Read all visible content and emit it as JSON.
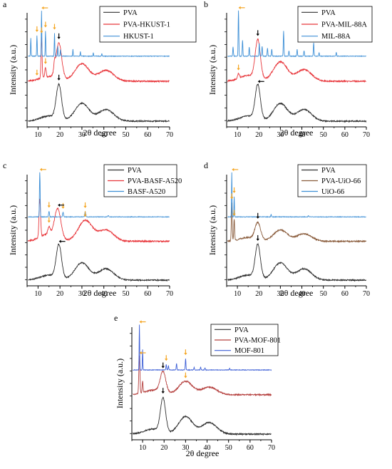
{
  "figure": {
    "background": "#ffffff",
    "arrow_color": "#f5a623",
    "shift_arrow_color": "#000000"
  },
  "chart_data": [
    {
      "panel": "a",
      "type": "line",
      "xlabel": "2θ degree",
      "ylabel": "Intensity (a.u.)",
      "xlim": [
        5,
        70
      ],
      "xticks": [
        10,
        20,
        30,
        40,
        50,
        60,
        70
      ],
      "legend": {
        "placement": "top-right"
      },
      "series": [
        {
          "name": "PVA",
          "color": "#2f2f2f",
          "kind": "amorphous",
          "peaks": [
            [
              19.5,
              1.0,
              1.2
            ],
            [
              30,
              0.52,
              3.2
            ],
            [
              41,
              0.34,
              3.5
            ]
          ],
          "shoulder": 0.15
        },
        {
          "name": "PVA-HKUST-1",
          "color": "#e8373c",
          "kind": "amorphous",
          "peaks": [
            [
              11.6,
              1.05,
              0.25
            ],
            [
              19.5,
              0.92,
              1.3
            ],
            [
              30,
              0.45,
              3.2
            ],
            [
              41,
              0.28,
              3.5
            ],
            [
              13.4,
              0.25,
              0.3
            ],
            [
              17.5,
              0.2,
              0.3
            ]
          ],
          "shoulder": 0.12
        },
        {
          "name": "HKUST-1",
          "color": "#3d8fd6",
          "kind": "crystalline",
          "peaks": [
            [
              6.7,
              0.4,
              0.12
            ],
            [
              9.5,
              0.45,
              0.12
            ],
            [
              11.6,
              1.0,
              0.12
            ],
            [
              13.4,
              0.55,
              0.12
            ],
            [
              17.5,
              0.5,
              0.12
            ],
            [
              19.0,
              0.22,
              0.12
            ],
            [
              20.2,
              0.15,
              0.12
            ],
            [
              25.9,
              0.15,
              0.12
            ],
            [
              29.3,
              0.1,
              0.12
            ],
            [
              35.2,
              0.08,
              0.12
            ],
            [
              39.1,
              0.06,
              0.12
            ]
          ]
        }
      ],
      "arrows": [
        {
          "series": 2,
          "x": 11.6,
          "color": "orange",
          "dir": "left"
        },
        {
          "series": 2,
          "x": 9.5,
          "color": "orange",
          "dir": "down"
        },
        {
          "series": 2,
          "x": 13.4,
          "color": "orange",
          "dir": "down"
        },
        {
          "series": 2,
          "x": 17.5,
          "color": "orange",
          "dir": "down"
        },
        {
          "series": 1,
          "x": 11.6,
          "color": "orange",
          "dir": "down"
        },
        {
          "series": 1,
          "x": 9.5,
          "color": "orange",
          "dir": "down"
        },
        {
          "series": 1,
          "x": 13.4,
          "color": "orange",
          "dir": "down"
        },
        {
          "series": 1,
          "x": 19.5,
          "color": "black",
          "dir": "down"
        },
        {
          "series": 0,
          "x": 19.5,
          "color": "black",
          "dir": "down"
        }
      ]
    },
    {
      "panel": "b",
      "type": "line",
      "xlabel": "2θ degree",
      "ylabel": "Intensity (a.u.)",
      "xlim": [
        5,
        70
      ],
      "xticks": [
        10,
        20,
        30,
        40,
        50,
        60,
        70
      ],
      "legend": {
        "placement": "top-right"
      },
      "series": [
        {
          "name": "PVA",
          "color": "#2f2f2f",
          "kind": "amorphous",
          "peaks": [
            [
              19.5,
              1.0,
              1.2
            ],
            [
              30,
              0.52,
              3.2
            ],
            [
              41,
              0.34,
              3.5
            ]
          ],
          "shoulder": 0.15
        },
        {
          "name": "PVA-MIL-88A",
          "color": "#e8373c",
          "kind": "amorphous",
          "peaks": [
            [
              19.5,
              1.0,
              1.2
            ],
            [
              30,
              0.5,
              3.2
            ],
            [
              41,
              0.3,
              3.5
            ],
            [
              10.5,
              0.12,
              0.4
            ]
          ],
          "shoulder": 0.15
        },
        {
          "name": "MIL-88A",
          "color": "#3d8fd6",
          "kind": "crystalline",
          "peaks": [
            [
              8.0,
              0.2,
              0.15
            ],
            [
              10.5,
              1.0,
              0.15
            ],
            [
              12.4,
              0.35,
              0.15
            ],
            [
              15.5,
              0.2,
              0.15
            ],
            [
              20.2,
              0.28,
              0.15
            ],
            [
              21.5,
              0.22,
              0.15
            ],
            [
              24.0,
              0.18,
              0.15
            ],
            [
              26.0,
              0.15,
              0.15
            ],
            [
              31.5,
              0.55,
              0.15
            ],
            [
              34.0,
              0.12,
              0.15
            ],
            [
              37.8,
              0.15,
              0.15
            ],
            [
              41.0,
              0.12,
              0.15
            ],
            [
              45.5,
              0.3,
              0.15
            ],
            [
              48.0,
              0.08,
              0.15
            ],
            [
              56.0,
              0.08,
              0.15
            ]
          ]
        }
      ],
      "arrows": [
        {
          "series": 2,
          "x": 10.5,
          "color": "orange",
          "dir": "left"
        },
        {
          "series": 1,
          "x": 10.5,
          "color": "orange",
          "dir": "down"
        },
        {
          "series": 1,
          "x": 19.5,
          "color": "black",
          "dir": "down"
        },
        {
          "series": 0,
          "x": 19.5,
          "color": "black",
          "dir": "left"
        }
      ]
    },
    {
      "panel": "c",
      "type": "line",
      "xlabel": "2θ degree",
      "ylabel": "Intensity (a.u.)",
      "xlim": [
        5,
        70
      ],
      "xticks": [
        10,
        20,
        30,
        40,
        50,
        60,
        70
      ],
      "legend": {
        "placement": "top-right"
      },
      "series": [
        {
          "name": "PVA",
          "color": "#2f2f2f",
          "kind": "amorphous",
          "peaks": [
            [
              19.5,
              1.0,
              1.2
            ],
            [
              30,
              0.52,
              3.2
            ],
            [
              41,
              0.34,
              3.5
            ]
          ],
          "shoulder": 0.15
        },
        {
          "name": "PVA-BASF-A520",
          "color": "#e8373c",
          "kind": "amorphous",
          "peaks": [
            [
              10.8,
              1.0,
              0.35
            ],
            [
              19.0,
              0.75,
              1.4
            ],
            [
              15.0,
              0.18,
              0.5
            ],
            [
              31.5,
              0.55,
              3.2
            ],
            [
              41,
              0.3,
              3.5
            ]
          ],
          "shoulder": 0.2
        },
        {
          "name": "BASF-A520",
          "color": "#3d8fd6",
          "kind": "crystalline",
          "peaks": [
            [
              10.8,
              1.0,
              0.15
            ],
            [
              15.0,
              0.12,
              0.2
            ],
            [
              21.4,
              0.1,
              0.2
            ],
            [
              31.5,
              0.12,
              0.2
            ],
            [
              42.0,
              0.03,
              0.2
            ]
          ]
        }
      ],
      "arrows": [
        {
          "series": 2,
          "x": 10.8,
          "color": "orange",
          "dir": "left"
        },
        {
          "series": 2,
          "x": 15.0,
          "color": "orange",
          "dir": "down"
        },
        {
          "series": 2,
          "x": 21.4,
          "color": "orange",
          "dir": "down"
        },
        {
          "series": 2,
          "x": 31.5,
          "color": "orange",
          "dir": "down"
        },
        {
          "series": 1,
          "x": 15.0,
          "color": "orange",
          "dir": "down"
        },
        {
          "series": 1,
          "x": 19.0,
          "color": "black",
          "dir": "left"
        },
        {
          "series": 1,
          "x": 31.5,
          "color": "orange",
          "dir": "down"
        },
        {
          "series": 0,
          "x": 19.5,
          "color": "black",
          "dir": "left"
        }
      ]
    },
    {
      "panel": "d",
      "type": "line",
      "xlabel": "2θ degree",
      "ylabel": "Intensity (a.u.)",
      "xlim": [
        5,
        70
      ],
      "xticks": [
        10,
        20,
        30,
        40,
        50,
        60,
        70
      ],
      "legend": {
        "placement": "top-right"
      },
      "series": [
        {
          "name": "PVA",
          "color": "#2f2f2f",
          "kind": "amorphous",
          "peaks": [
            [
              19.5,
              1.0,
              1.2
            ],
            [
              30,
              0.52,
              3.2
            ],
            [
              41,
              0.34,
              3.5
            ]
          ],
          "shoulder": 0.15
        },
        {
          "name": "PVA-UiO-66",
          "color": "#8a5c3c",
          "kind": "amorphous",
          "peaks": [
            [
              7.4,
              1.0,
              0.2
            ],
            [
              8.5,
              0.55,
              0.2
            ],
            [
              19.5,
              0.45,
              1.3
            ],
            [
              30,
              0.3,
              3.2
            ],
            [
              41,
              0.2,
              3.5
            ]
          ],
          "shoulder": 0.1
        },
        {
          "name": "UiO-66",
          "color": "#3d8fd6",
          "kind": "crystalline",
          "peaks": [
            [
              7.4,
              1.0,
              0.12
            ],
            [
              8.5,
              0.45,
              0.12
            ],
            [
              25.7,
              0.05,
              0.15
            ],
            [
              43.0,
              0.03,
              0.15
            ]
          ]
        }
      ],
      "arrows": [
        {
          "series": 2,
          "x": 7.4,
          "color": "orange",
          "dir": "left"
        },
        {
          "series": 2,
          "x": 8.5,
          "color": "orange",
          "dir": "down"
        },
        {
          "series": 1,
          "x": 7.4,
          "color": "orange",
          "dir": "down"
        },
        {
          "series": 1,
          "x": 8.5,
          "color": "orange",
          "dir": "down"
        },
        {
          "series": 1,
          "x": 19.5,
          "color": "black",
          "dir": "down"
        },
        {
          "series": 0,
          "x": 19.5,
          "color": "black",
          "dir": "down"
        }
      ]
    },
    {
      "panel": "e",
      "type": "line",
      "xlabel": "2θ degree",
      "ylabel": "Intensity (a.u.)",
      "xlim": [
        5,
        70
      ],
      "xticks": [
        10,
        20,
        30,
        40,
        50,
        60,
        70
      ],
      "legend": {
        "placement": "top-right"
      },
      "series": [
        {
          "name": "PVA",
          "color": "#2f2f2f",
          "kind": "amorphous",
          "peaks": [
            [
              19.5,
              1.0,
              1.2
            ],
            [
              30,
              0.52,
              3.2
            ],
            [
              41,
              0.34,
              3.5
            ]
          ],
          "shoulder": 0.15
        },
        {
          "name": "PVA-MOF-801",
          "color": "#b5403e",
          "kind": "amorphous",
          "peaks": [
            [
              8.5,
              1.0,
              0.25
            ],
            [
              19.5,
              0.55,
              1.3
            ],
            [
              30,
              0.35,
              3.2
            ],
            [
              41,
              0.2,
              3.5
            ],
            [
              10.0,
              0.3,
              0.2
            ]
          ],
          "shoulder": 0.12
        },
        {
          "name": "MOF-801",
          "color": "#3d5fd6",
          "kind": "crystalline",
          "peaks": [
            [
              8.5,
              1.0,
              0.12
            ],
            [
              10.0,
              0.45,
              0.12
            ],
            [
              21.0,
              0.12,
              0.15
            ],
            [
              22.0,
              0.1,
              0.15
            ],
            [
              25.8,
              0.15,
              0.15
            ],
            [
              30.0,
              0.25,
              0.15
            ],
            [
              34.0,
              0.06,
              0.15
            ],
            [
              37.0,
              0.06,
              0.15
            ],
            [
              39.0,
              0.05,
              0.15
            ],
            [
              50.5,
              0.04,
              0.15
            ]
          ]
        }
      ],
      "arrows": [
        {
          "series": 2,
          "x": 8.5,
          "color": "orange",
          "dir": "left"
        },
        {
          "series": 2,
          "x": 21.0,
          "color": "orange",
          "dir": "down"
        },
        {
          "series": 2,
          "x": 30.0,
          "color": "orange",
          "dir": "down"
        },
        {
          "series": 1,
          "x": 8.5,
          "color": "orange",
          "dir": "left"
        },
        {
          "series": 1,
          "x": 19.5,
          "color": "black",
          "dir": "down"
        },
        {
          "series": 1,
          "x": 30.0,
          "color": "orange",
          "dir": "down"
        },
        {
          "series": 0,
          "x": 19.5,
          "color": "black",
          "dir": "down"
        }
      ]
    }
  ]
}
